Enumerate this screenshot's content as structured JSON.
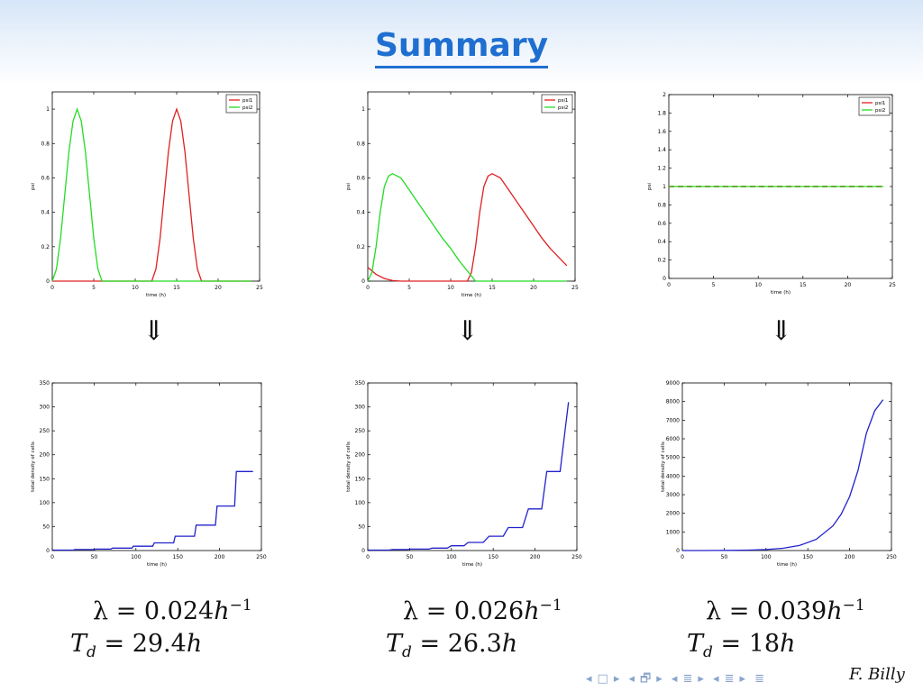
{
  "slide": {
    "title": "Summary",
    "author": "F. Billy",
    "implies_arrow": "⇓",
    "nav_symbols": [
      "◂",
      "□",
      "▸",
      "◂",
      "🗗",
      "▸",
      "◂",
      "≣",
      "▸",
      "◂",
      "≣",
      "▸",
      "≣"
    ],
    "columns": [
      {
        "lambda_prefix": "λ = 0.024",
        "lambda_unit": "h",
        "lambda_exp": "−1",
        "td_var": "T",
        "td_sub": "d",
        "td_value": " = 29.4",
        "td_unit": "h"
      },
      {
        "lambda_prefix": "λ = 0.026",
        "lambda_unit": "h",
        "lambda_exp": "−1",
        "td_var": "T",
        "td_sub": "d",
        "td_value": " = 26.3",
        "td_unit": "h"
      },
      {
        "lambda_prefix": "λ = 0.039",
        "lambda_unit": "h",
        "lambda_exp": "−1",
        "td_var": "T",
        "td_sub": "d",
        "td_value": " = 18",
        "td_unit": "h"
      }
    ]
  },
  "colors": {
    "title": "#1f6fd0",
    "psi1": "#e02020",
    "psi2": "#22dd22",
    "density": "#2222cc",
    "nav": "#8aa4cc"
  },
  "chart_data": [
    {
      "type": "line",
      "xlabel": "time (h)",
      "ylabel": "psi",
      "xlim": [
        0,
        25
      ],
      "ylim": [
        0,
        1.1
      ],
      "xticks": [
        0,
        5,
        10,
        15,
        20,
        25
      ],
      "yticks": [
        0,
        0.2,
        0.4,
        0.6,
        0.8,
        1
      ],
      "legend": "top-right",
      "series": [
        {
          "name": "psi1",
          "color": "#e02020",
          "x": [
            0,
            12,
            12.5,
            13,
            13.5,
            14,
            14.5,
            15,
            15.5,
            16,
            16.5,
            17,
            17.5,
            18,
            24
          ],
          "y": [
            0,
            0,
            0.07,
            0.25,
            0.5,
            0.75,
            0.93,
            1,
            0.93,
            0.75,
            0.5,
            0.25,
            0.07,
            0,
            0
          ]
        },
        {
          "name": "psi2",
          "color": "#22dd22",
          "x": [
            0,
            0.5,
            1,
            1.5,
            2,
            2.5,
            3,
            3.5,
            4,
            4.5,
            5,
            5.5,
            6,
            24
          ],
          "y": [
            0,
            0.07,
            0.25,
            0.5,
            0.75,
            0.93,
            1,
            0.93,
            0.75,
            0.5,
            0.25,
            0.07,
            0,
            0
          ]
        }
      ]
    },
    {
      "type": "line",
      "xlabel": "time (h)",
      "ylabel": "psi",
      "xlim": [
        0,
        25
      ],
      "ylim": [
        0,
        1.1
      ],
      "xticks": [
        0,
        5,
        10,
        15,
        20,
        25
      ],
      "yticks": [
        0,
        0.2,
        0.4,
        0.6,
        0.8,
        1
      ],
      "legend": "top-right",
      "series": [
        {
          "name": "psi1",
          "color": "#e02020",
          "x": [
            0,
            1,
            2,
            3,
            4,
            12,
            12.5,
            13,
            13.5,
            14,
            14.5,
            15,
            16,
            17,
            18,
            19,
            20,
            21,
            22,
            23,
            24
          ],
          "y": [
            0.08,
            0.04,
            0.015,
            0.003,
            0,
            0,
            0.05,
            0.2,
            0.4,
            0.55,
            0.61,
            0.625,
            0.6,
            0.53,
            0.46,
            0.39,
            0.32,
            0.25,
            0.19,
            0.14,
            0.09
          ]
        },
        {
          "name": "psi2",
          "color": "#22dd22",
          "x": [
            0,
            0.5,
            1,
            1.5,
            2,
            2.5,
            3,
            4,
            5,
            6,
            7,
            8,
            9,
            10,
            11,
            12,
            12.5,
            13,
            24
          ],
          "y": [
            0,
            0.05,
            0.2,
            0.4,
            0.55,
            0.61,
            0.625,
            0.6,
            0.53,
            0.46,
            0.39,
            0.32,
            0.25,
            0.19,
            0.12,
            0.06,
            0.03,
            0,
            0
          ]
        }
      ]
    },
    {
      "type": "line",
      "xlabel": "time (h)",
      "ylabel": "psi",
      "xlim": [
        0,
        25
      ],
      "ylim": [
        0,
        2
      ],
      "xticks": [
        0,
        5,
        10,
        15,
        20,
        25
      ],
      "yticks": [
        0,
        0.2,
        0.4,
        0.6,
        0.8,
        1,
        1.2,
        1.4,
        1.6,
        1.8,
        2
      ],
      "legend": "top-right",
      "series": [
        {
          "name": "psi1",
          "color": "#e02020",
          "dashed": true,
          "x": [
            0,
            24
          ],
          "y": [
            1,
            1
          ]
        },
        {
          "name": "psi2",
          "color": "#22dd22",
          "x": [
            0,
            24
          ],
          "y": [
            1,
            1
          ]
        }
      ]
    },
    {
      "type": "line",
      "xlabel": "time (h)",
      "ylabel": "total density of cells",
      "xlim": [
        0,
        250
      ],
      "ylim": [
        0,
        350
      ],
      "xticks": [
        0,
        50,
        100,
        150,
        200,
        250
      ],
      "yticks": [
        0,
        50,
        100,
        150,
        200,
        250,
        300,
        350
      ],
      "series": [
        {
          "name": "",
          "color": "#2222cc",
          "x": [
            0,
            25,
            27,
            50,
            52,
            70,
            72,
            95,
            97,
            120,
            122,
            145,
            147,
            170,
            172,
            195,
            197,
            218,
            220,
            240
          ],
          "y": [
            1,
            1,
            2,
            2,
            3,
            3,
            5,
            5,
            9,
            9,
            16,
            16,
            30,
            30,
            53,
            53,
            93,
            93,
            165,
            165
          ]
        }
      ]
    },
    {
      "type": "line",
      "xlabel": "time (h)",
      "ylabel": "total density of cells",
      "xlim": [
        0,
        250
      ],
      "ylim": [
        0,
        350
      ],
      "xticks": [
        0,
        50,
        100,
        150,
        200,
        250
      ],
      "yticks": [
        0,
        50,
        100,
        150,
        200,
        250,
        300,
        350
      ],
      "series": [
        {
          "name": "",
          "color": "#2222cc",
          "x": [
            0,
            25,
            30,
            47,
            52,
            73,
            77,
            95,
            100,
            115,
            120,
            138,
            145,
            162,
            168,
            185,
            192,
            208,
            214,
            230,
            240
          ],
          "y": [
            1,
            1,
            2,
            2,
            3,
            3,
            5,
            5,
            10,
            10,
            17,
            17,
            30,
            30,
            48,
            48,
            87,
            87,
            165,
            165,
            310
          ]
        }
      ]
    },
    {
      "type": "line",
      "xlabel": "time (h)",
      "ylabel": "total density of cells",
      "xlim": [
        0,
        250
      ],
      "ylim": [
        0,
        9000
      ],
      "xticks": [
        0,
        50,
        100,
        150,
        200,
        250
      ],
      "yticks": [
        0,
        1000,
        2000,
        3000,
        4000,
        5000,
        6000,
        7000,
        8000,
        9000
      ],
      "series": [
        {
          "name": "",
          "color": "#2222cc",
          "x": [
            0,
            20,
            40,
            60,
            80,
            100,
            120,
            140,
            160,
            180,
            190,
            200,
            210,
            220,
            230,
            240
          ],
          "y": [
            1,
            2,
            5,
            11,
            25,
            55,
            121,
            270,
            600,
            1320,
            1960,
            2900,
            4300,
            6300,
            7500,
            8100
          ]
        }
      ]
    }
  ]
}
